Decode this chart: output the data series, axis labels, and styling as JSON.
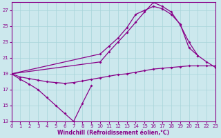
{
  "background_color": "#cce8ed",
  "grid_color": "#a8d4da",
  "line_color": "#880088",
  "marker": "D",
  "marker_size": 2,
  "xlabel": "Windchill (Refroidissement éolien,°C)",
  "xlim": [
    0,
    23
  ],
  "ylim": [
    13,
    28
  ],
  "yticks": [
    13,
    15,
    17,
    19,
    21,
    23,
    25,
    27
  ],
  "xticks": [
    0,
    1,
    2,
    3,
    4,
    5,
    6,
    7,
    8,
    9,
    10,
    11,
    12,
    13,
    14,
    15,
    16,
    17,
    18,
    19,
    20,
    21,
    22,
    23
  ],
  "series": [
    {
      "x": [
        0,
        1,
        2,
        3,
        4,
        5,
        6,
        7,
        8,
        9
      ],
      "y": [
        19,
        18.3,
        17.7,
        17.0,
        16.0,
        15.0,
        14.0,
        13.0,
        15.3,
        17.5
      ]
    },
    {
      "x": [
        0,
        1,
        2,
        3,
        4,
        5,
        6,
        7,
        8,
        9,
        10,
        11,
        12,
        13,
        14,
        15,
        16,
        17,
        18,
        19,
        20,
        21,
        22,
        23
      ],
      "y": [
        19,
        18.6,
        18.4,
        18.2,
        18.0,
        17.9,
        17.8,
        17.9,
        18.1,
        18.3,
        18.5,
        18.7,
        18.9,
        19.0,
        19.2,
        19.4,
        19.6,
        19.7,
        19.8,
        19.9,
        20.0,
        20.0,
        20.0,
        20.0
      ]
    },
    {
      "x": [
        0,
        10,
        11,
        12,
        13,
        14,
        15,
        16,
        17,
        18,
        19,
        20,
        21,
        22,
        23
      ],
      "y": [
        19,
        20.5,
        21.8,
        23.0,
        24.2,
        25.5,
        26.8,
        28.0,
        27.5,
        26.8,
        25.2,
        23.0,
        21.3,
        20.5,
        19.8
      ]
    },
    {
      "x": [
        0,
        10,
        11,
        12,
        13,
        14,
        15,
        16,
        17,
        18,
        19,
        20,
        21
      ],
      "y": [
        19,
        21.5,
        22.5,
        23.5,
        24.8,
        26.5,
        27.0,
        27.5,
        27.2,
        26.5,
        25.3,
        22.3,
        21.3
      ]
    }
  ]
}
